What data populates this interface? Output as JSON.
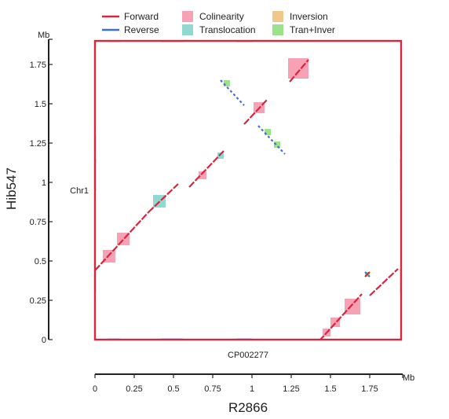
{
  "chart_data": {
    "type": "scatter",
    "subtype": "dot-plot (genome synteny)",
    "x_axis": {
      "label": "R2866",
      "unit": "Mb",
      "sequence_label": "CP002277",
      "range": [
        0,
        1.95
      ],
      "ticks": [
        "0",
        "0.25",
        "0.5",
        "0.75",
        "1",
        "1.25",
        "1.5",
        "1.75"
      ],
      "tick_values": [
        0,
        0.25,
        0.5,
        0.75,
        1,
        1.25,
        1.5,
        1.75
      ]
    },
    "y_axis": {
      "label": "Hib547",
      "unit": "Mb",
      "sequence_label": "Chr1",
      "range": [
        0,
        1.9
      ],
      "ticks": [
        "0",
        "0.25",
        "0.5",
        "0.75",
        "1",
        "1.25",
        "1.5",
        "1.75"
      ],
      "tick_values": [
        0,
        0.25,
        0.5,
        0.75,
        1,
        1.25,
        1.5,
        1.75
      ]
    },
    "legend": {
      "placement": "top",
      "entries": [
        {
          "label": "Forward",
          "type": "line",
          "color": "#d7263d"
        },
        {
          "label": "Reverse",
          "type": "line",
          "color": "#3f6fd4"
        },
        {
          "label": "Colinearity",
          "type": "box",
          "color": "#f7a1b5"
        },
        {
          "label": "Translocation",
          "type": "box",
          "color": "#8fd9d0"
        },
        {
          "label": "Inversion",
          "type": "box",
          "color": "#f0c98a"
        },
        {
          "label": "Tran+Inver",
          "type": "box",
          "color": "#9be28b"
        }
      ]
    },
    "colors": {
      "forward": "#d7263d",
      "reverse": "#3f6fd4",
      "colinearity": "#f7a1b5",
      "translocation": "#8fd9d0",
      "inversion": "#f0c98a",
      "tran_inver": "#9be28b",
      "frame": "#d7263d"
    },
    "blocks": [
      {
        "type": "Colinearity",
        "x": [
          0.05,
          0.13
        ],
        "y": [
          0.49,
          0.57
        ]
      },
      {
        "type": "Colinearity",
        "x": [
          0.14,
          0.22
        ],
        "y": [
          0.6,
          0.68
        ]
      },
      {
        "type": "Translocation",
        "x": [
          0.37,
          0.45
        ],
        "y": [
          0.84,
          0.92
        ]
      },
      {
        "type": "Colinearity",
        "x": [
          0.66,
          0.71
        ],
        "y": [
          1.02,
          1.07
        ]
      },
      {
        "type": "Translocation",
        "x": [
          0.78,
          0.82
        ],
        "y": [
          1.15,
          1.19
        ]
      },
      {
        "type": "Tran+Inver",
        "x": [
          0.82,
          0.86
        ],
        "y": [
          1.61,
          1.65
        ]
      },
      {
        "type": "Colinearity",
        "x": [
          1.01,
          1.08
        ],
        "y": [
          1.44,
          1.51
        ]
      },
      {
        "type": "Tran+Inver",
        "x": [
          1.08,
          1.12
        ],
        "y": [
          1.3,
          1.34
        ]
      },
      {
        "type": "Tran+Inver",
        "x": [
          1.14,
          1.18
        ],
        "y": [
          1.22,
          1.26
        ]
      },
      {
        "type": "Colinearity",
        "x": [
          1.23,
          1.36
        ],
        "y": [
          1.66,
          1.79
        ]
      },
      {
        "type": "Colinearity",
        "x": [
          1.45,
          1.5
        ],
        "y": [
          0.02,
          0.07
        ]
      },
      {
        "type": "Colinearity",
        "x": [
          1.5,
          1.56
        ],
        "y": [
          0.08,
          0.14
        ]
      },
      {
        "type": "Colinearity",
        "x": [
          1.59,
          1.69
        ],
        "y": [
          0.16,
          0.26
        ]
      },
      {
        "type": "Tran+Inver",
        "x": [
          1.72,
          1.75
        ],
        "y": [
          0.4,
          0.43
        ]
      }
    ],
    "forward_segments": [
      {
        "x": [
          0.0,
          0.34
        ],
        "y": [
          0.44,
          0.81
        ]
      },
      {
        "x": [
          0.34,
          0.53
        ],
        "y": [
          0.81,
          0.99
        ]
      },
      {
        "x": [
          0.6,
          0.82
        ],
        "y": [
          0.97,
          1.2
        ]
      },
      {
        "x": [
          0.95,
          1.1
        ],
        "y": [
          1.37,
          1.53
        ]
      },
      {
        "x": [
          1.24,
          1.36
        ],
        "y": [
          1.64,
          1.78
        ]
      },
      {
        "x": [
          1.39,
          1.7
        ],
        "y": [
          -0.05,
          0.29
        ]
      },
      {
        "x": [
          1.75,
          1.93
        ],
        "y": [
          0.28,
          0.45
        ]
      },
      {
        "x": [
          1.72,
          1.75
        ],
        "y": [
          0.4,
          0.43
        ]
      }
    ],
    "reverse_segments": [
      {
        "x": [
          0.8,
          0.95
        ],
        "y": [
          1.65,
          1.49
        ]
      },
      {
        "x": [
          1.04,
          1.21
        ],
        "y": [
          1.36,
          1.18
        ]
      },
      {
        "x": [
          1.72,
          1.75
        ],
        "y": [
          0.43,
          0.4
        ]
      }
    ]
  }
}
